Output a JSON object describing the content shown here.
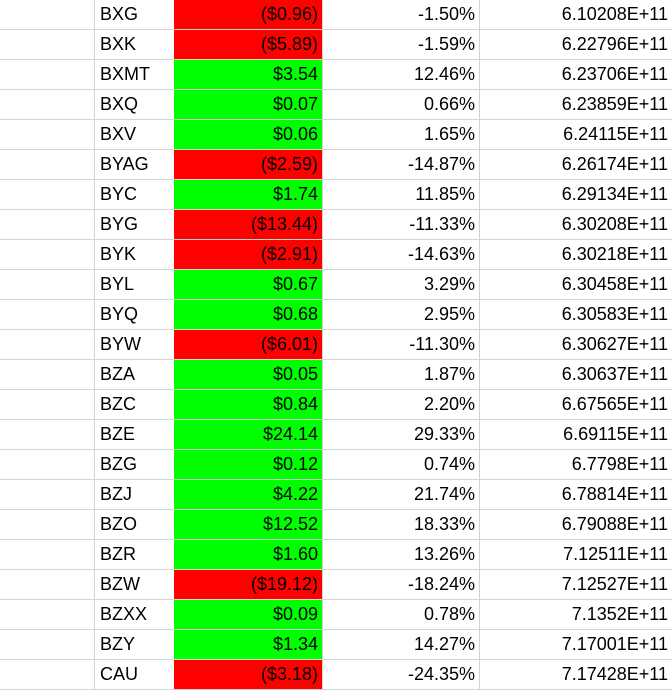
{
  "colors": {
    "positive_fill": "#00ff00",
    "negative_fill": "#ff0000",
    "gridline": "#d4d4d4"
  },
  "rows": [
    {
      "ticker": "BXG",
      "change": "($0.96)",
      "pct": "-1.50%",
      "value": "6.10208E+11",
      "sign": "negative"
    },
    {
      "ticker": "BXK",
      "change": "($5.89)",
      "pct": "-1.59%",
      "value": "6.22796E+11",
      "sign": "negative"
    },
    {
      "ticker": "BXMT",
      "change": "$3.54",
      "pct": "12.46%",
      "value": "6.23706E+11",
      "sign": "positive"
    },
    {
      "ticker": "BXQ",
      "change": "$0.07",
      "pct": "0.66%",
      "value": "6.23859E+11",
      "sign": "positive"
    },
    {
      "ticker": "BXV",
      "change": "$0.06",
      "pct": "1.65%",
      "value": "6.24115E+11",
      "sign": "positive"
    },
    {
      "ticker": "BYAG",
      "change": "($2.59)",
      "pct": "-14.87%",
      "value": "6.26174E+11",
      "sign": "negative"
    },
    {
      "ticker": "BYC",
      "change": "$1.74",
      "pct": "11.85%",
      "value": "6.29134E+11",
      "sign": "positive"
    },
    {
      "ticker": "BYG",
      "change": "($13.44)",
      "pct": "-11.33%",
      "value": "6.30208E+11",
      "sign": "negative"
    },
    {
      "ticker": "BYK",
      "change": "($2.91)",
      "pct": "-14.63%",
      "value": "6.30218E+11",
      "sign": "negative"
    },
    {
      "ticker": "BYL",
      "change": "$0.67",
      "pct": "3.29%",
      "value": "6.30458E+11",
      "sign": "positive"
    },
    {
      "ticker": "BYQ",
      "change": "$0.68",
      "pct": "2.95%",
      "value": "6.30583E+11",
      "sign": "positive"
    },
    {
      "ticker": "BYW",
      "change": "($6.01)",
      "pct": "-11.30%",
      "value": "6.30627E+11",
      "sign": "negative"
    },
    {
      "ticker": "BZA",
      "change": "$0.05",
      "pct": "1.87%",
      "value": "6.30637E+11",
      "sign": "positive"
    },
    {
      "ticker": "BZC",
      "change": "$0.84",
      "pct": "2.20%",
      "value": "6.67565E+11",
      "sign": "positive"
    },
    {
      "ticker": "BZE",
      "change": "$24.14",
      "pct": "29.33%",
      "value": "6.69115E+11",
      "sign": "positive"
    },
    {
      "ticker": "BZG",
      "change": "$0.12",
      "pct": "0.74%",
      "value": "6.7798E+11",
      "sign": "positive"
    },
    {
      "ticker": "BZJ",
      "change": "$4.22",
      "pct": "21.74%",
      "value": "6.78814E+11",
      "sign": "positive"
    },
    {
      "ticker": "BZO",
      "change": "$12.52",
      "pct": "18.33%",
      "value": "6.79088E+11",
      "sign": "positive"
    },
    {
      "ticker": "BZR",
      "change": "$1.60",
      "pct": "13.26%",
      "value": "7.12511E+11",
      "sign": "positive"
    },
    {
      "ticker": "BZW",
      "change": "($19.12)",
      "pct": "-18.24%",
      "value": "7.12527E+11",
      "sign": "negative"
    },
    {
      "ticker": "BZXX",
      "change": "$0.09",
      "pct": "0.78%",
      "value": "7.1352E+11",
      "sign": "positive"
    },
    {
      "ticker": "BZY",
      "change": "$1.34",
      "pct": "14.27%",
      "value": "7.17001E+11",
      "sign": "positive"
    },
    {
      "ticker": "CAU",
      "change": "($3.18)",
      "pct": "-24.35%",
      "value": "7.17428E+11",
      "sign": "negative"
    }
  ]
}
